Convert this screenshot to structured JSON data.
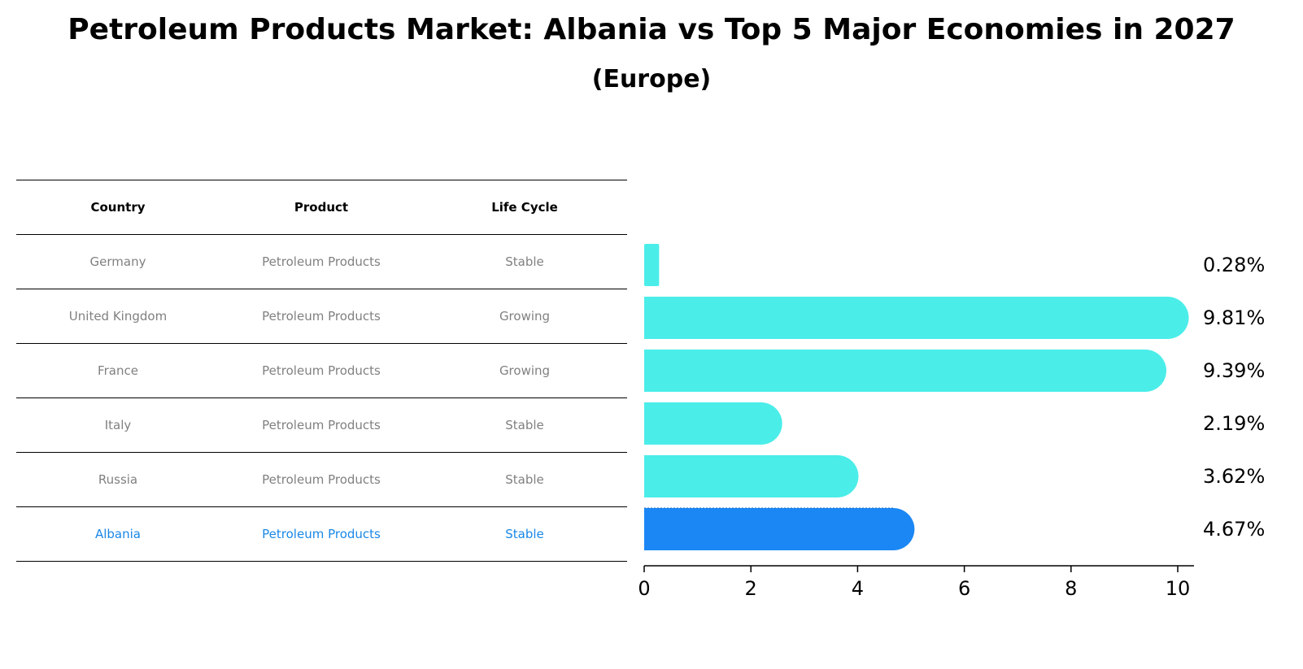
{
  "title": "Petroleum Products Market: Albania vs Top 5 Major Economies in 2027",
  "subtitle": "(Europe)",
  "table": {
    "headers": [
      "Country",
      "Product",
      "Life Cycle"
    ],
    "rows": [
      [
        "Germany",
        "Petroleum Products",
        "Stable"
      ],
      [
        "United Kingdom",
        "Petroleum Products",
        "Growing"
      ],
      [
        "France",
        "Petroleum Products",
        "Growing"
      ],
      [
        "Italy",
        "Petroleum Products",
        "Stable"
      ],
      [
        "Russia",
        "Petroleum Products",
        "Stable"
      ],
      [
        "Albania",
        "Petroleum Products",
        "Stable"
      ]
    ],
    "highlight_row": 5
  },
  "chart_data": {
    "type": "bar",
    "orientation": "horizontal",
    "categories": [
      "Germany",
      "United Kingdom",
      "France",
      "Italy",
      "Russia",
      "Albania"
    ],
    "values": [
      0.28,
      9.81,
      9.39,
      2.19,
      3.62,
      4.67
    ],
    "value_labels": [
      "0.28%",
      "9.81%",
      "9.39%",
      "2.19%",
      "3.62%",
      "4.67%"
    ],
    "xticks": [
      "0",
      "2",
      "4",
      "6",
      "8",
      "10"
    ],
    "xlim": [
      0,
      10.3
    ],
    "grid": false,
    "colors": {
      "default": "#4bede9",
      "highlight": "#1a87f5"
    },
    "highlight_index": 5
  }
}
